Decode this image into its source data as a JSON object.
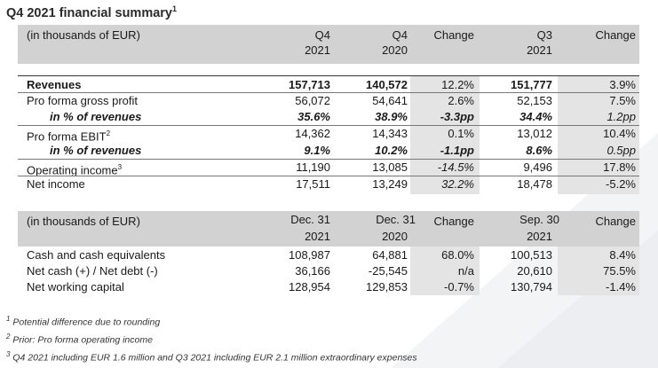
{
  "title": "Q4 2021 financial summary",
  "title_sup": "1",
  "table1": {
    "unit_label": "(in thousands of EUR)",
    "headers": [
      {
        "l1": "Q4",
        "l2": "2021"
      },
      {
        "l1": "Q4",
        "l2": "2020"
      },
      {
        "l1": "Change",
        "l2": ""
      },
      {
        "l1": "Q3",
        "l2": "2021"
      },
      {
        "l1": "Change",
        "l2": ""
      }
    ],
    "rows": [
      {
        "label": "Revenues",
        "sup": "",
        "style": "bold",
        "values": [
          "157,713",
          "140,572",
          "12.2%",
          "151,777",
          "3.9%"
        ]
      },
      {
        "label": "Pro forma gross profit",
        "sup": "",
        "style": "normal",
        "values": [
          "56,072",
          "54,641",
          "2.6%",
          "52,153",
          "7.5%"
        ]
      },
      {
        "label": "in % of revenues",
        "sup": "",
        "style": "bold-italic",
        "values": [
          "35.6%",
          "38.9%",
          "-3.3pp",
          "34.4%",
          "1.2pp"
        ]
      },
      {
        "label": "Pro forma EBIT",
        "sup": "2",
        "style": "normal",
        "values": [
          "14,362",
          "14,343",
          "0.1%",
          "13,012",
          "10.4%"
        ]
      },
      {
        "label": "in % of revenues",
        "sup": "",
        "style": "bold-italic",
        "values": [
          "9.1%",
          "10.2%",
          "-1.1pp",
          "8.6%",
          "0.5pp"
        ]
      },
      {
        "label": "Operating income",
        "sup": "3",
        "style": "normal",
        "values": [
          "11,190",
          "13,085",
          "-14.5%",
          "9,496",
          "17.8%"
        ]
      },
      {
        "label": "Net income",
        "sup": "",
        "style": "normal",
        "values": [
          "17,511",
          "13,249",
          "32.2%",
          "18,478",
          "-5.2%"
        ]
      }
    ]
  },
  "table2": {
    "unit_label": "(in thousands of EUR)",
    "headers": [
      {
        "l1": "Dec. 31",
        "l2": "2021"
      },
      {
        "l1": "Dec. 31",
        "l2": "2020"
      },
      {
        "l1": "Change",
        "l2": ""
      },
      {
        "l1": "Sep. 30",
        "l2": "2021"
      },
      {
        "l1": "Change",
        "l2": ""
      }
    ],
    "rows": [
      {
        "label": "Cash and cash equivalents",
        "values": [
          "108,987",
          "64,881",
          "68.0%",
          "100,513",
          "8.4%"
        ]
      },
      {
        "label": "Net cash (+) / Net debt (-)",
        "values": [
          "36,166",
          "-25,545",
          "n/a",
          "20,610",
          "75.5%"
        ]
      },
      {
        "label": "Net working capital",
        "values": [
          "128,954",
          "129,853",
          "-0.7%",
          "130,794",
          "-1.4%"
        ]
      }
    ]
  },
  "footnotes": [
    {
      "num": "1",
      "text": "Potential difference due to rounding"
    },
    {
      "num": "2",
      "text": "Prior: Pro forma operating income"
    },
    {
      "num": "3",
      "text": "Q4 2021 including EUR 1.6 million and Q3 2021 including EUR 2.1 million extraordinary expenses"
    }
  ]
}
